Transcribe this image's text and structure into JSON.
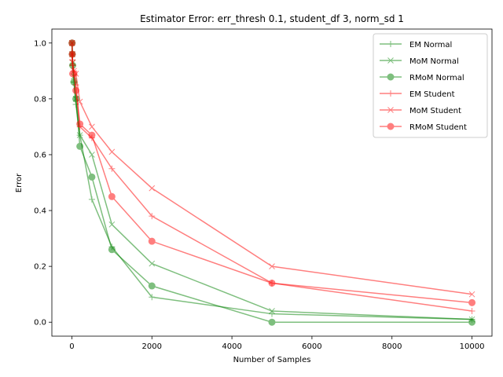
{
  "chart_data": {
    "type": "line",
    "title": "Estimator Error: err_thresh 0.1, student_df 3, norm_sd 1",
    "xlabel": "Number of Samples",
    "ylabel": "Error",
    "xlim": [
      -500,
      10500
    ],
    "ylim": [
      -0.05,
      1.05
    ],
    "xticks": [
      0,
      2000,
      4000,
      6000,
      8000,
      10000
    ],
    "xtick_labels": [
      "0",
      "2000",
      "4000",
      "6000",
      "8000",
      "10000"
    ],
    "yticks": [
      0.0,
      0.2,
      0.4,
      0.6,
      0.8,
      1.0
    ],
    "ytick_labels": [
      "0.0",
      "0.2",
      "0.4",
      "0.6",
      "0.8",
      "1.0"
    ],
    "grid": false,
    "legend_position": "top-right",
    "x": [
      5,
      10,
      20,
      50,
      100,
      200,
      500,
      1000,
      2000,
      5000,
      10000
    ],
    "series": [
      {
        "name": "EM Normal",
        "color": "#008000",
        "marker": "plus",
        "values": [
          1.0,
          0.96,
          0.92,
          0.86,
          0.78,
          0.67,
          0.44,
          0.27,
          0.09,
          0.03,
          0.01
        ]
      },
      {
        "name": "MoM Normal",
        "color": "#008000",
        "marker": "x",
        "values": [
          1.0,
          0.96,
          0.93,
          0.88,
          0.8,
          0.67,
          0.6,
          0.35,
          0.21,
          0.04,
          0.01
        ]
      },
      {
        "name": "RMoM Normal",
        "color": "#008000",
        "marker": "circle",
        "values": [
          1.0,
          0.96,
          0.92,
          0.86,
          0.8,
          0.63,
          0.52,
          0.26,
          0.13,
          0.0,
          0.0
        ]
      },
      {
        "name": "EM Student",
        "color": "#ff0000",
        "marker": "plus",
        "values": [
          0.96,
          0.94,
          0.92,
          0.9,
          0.85,
          0.7,
          0.66,
          0.55,
          0.38,
          0.14,
          0.04
        ]
      },
      {
        "name": "MoM Student",
        "color": "#ff0000",
        "marker": "x",
        "values": [
          1.0,
          0.96,
          0.93,
          0.9,
          0.89,
          0.79,
          0.7,
          0.61,
          0.48,
          0.2,
          0.1
        ]
      },
      {
        "name": "RMoM Student",
        "color": "#ff0000",
        "marker": "circle",
        "values": [
          1.0,
          0.96,
          0.89,
          0.89,
          0.83,
          0.71,
          0.67,
          0.45,
          0.29,
          0.14,
          0.07
        ]
      }
    ]
  }
}
